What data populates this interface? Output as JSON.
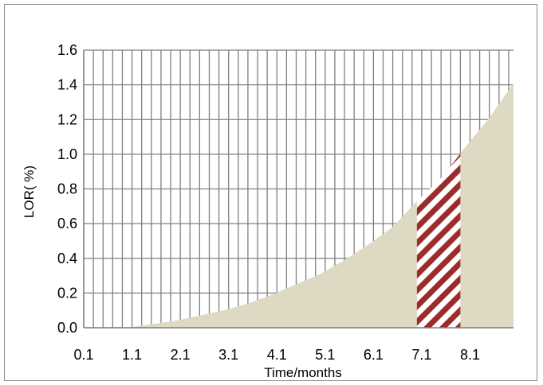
{
  "chart_data": {
    "type": "area",
    "xlabel": "Time/months",
    "ylabel": "LOR( %)",
    "x_tick_labels": [
      "0.1",
      "1.1",
      "2.1",
      "3.1",
      "4.1",
      "5.1",
      "6.1",
      "7.1",
      "8.1"
    ],
    "y_tick_labels": [
      "0.0",
      "0.2",
      "0.4",
      "0.6",
      "0.8",
      "1.0",
      "1.2",
      "1.4",
      "1.6"
    ],
    "xlim": [
      0.1,
      9.0
    ],
    "ylim": [
      0,
      1.6
    ],
    "grid": true,
    "x": [
      1.0,
      1.5,
      2.0,
      2.5,
      3.0,
      3.5,
      4.0,
      4.5,
      5.0,
      5.5,
      6.0,
      6.5,
      7.0,
      7.5,
      8.0,
      8.5,
      9.0
    ],
    "y": [
      0.0,
      0.02,
      0.04,
      0.07,
      0.1,
      0.14,
      0.19,
      0.25,
      0.31,
      0.39,
      0.48,
      0.58,
      0.73,
      0.86,
      1.04,
      1.21,
      1.41
    ],
    "highlight": {
      "x_start": 7.0,
      "x_end": 7.9,
      "pattern": "diagonal-hatch"
    },
    "colors": {
      "area": "#ddd9c3",
      "hatch": "#9b2c2c",
      "grid": "#808080"
    }
  }
}
